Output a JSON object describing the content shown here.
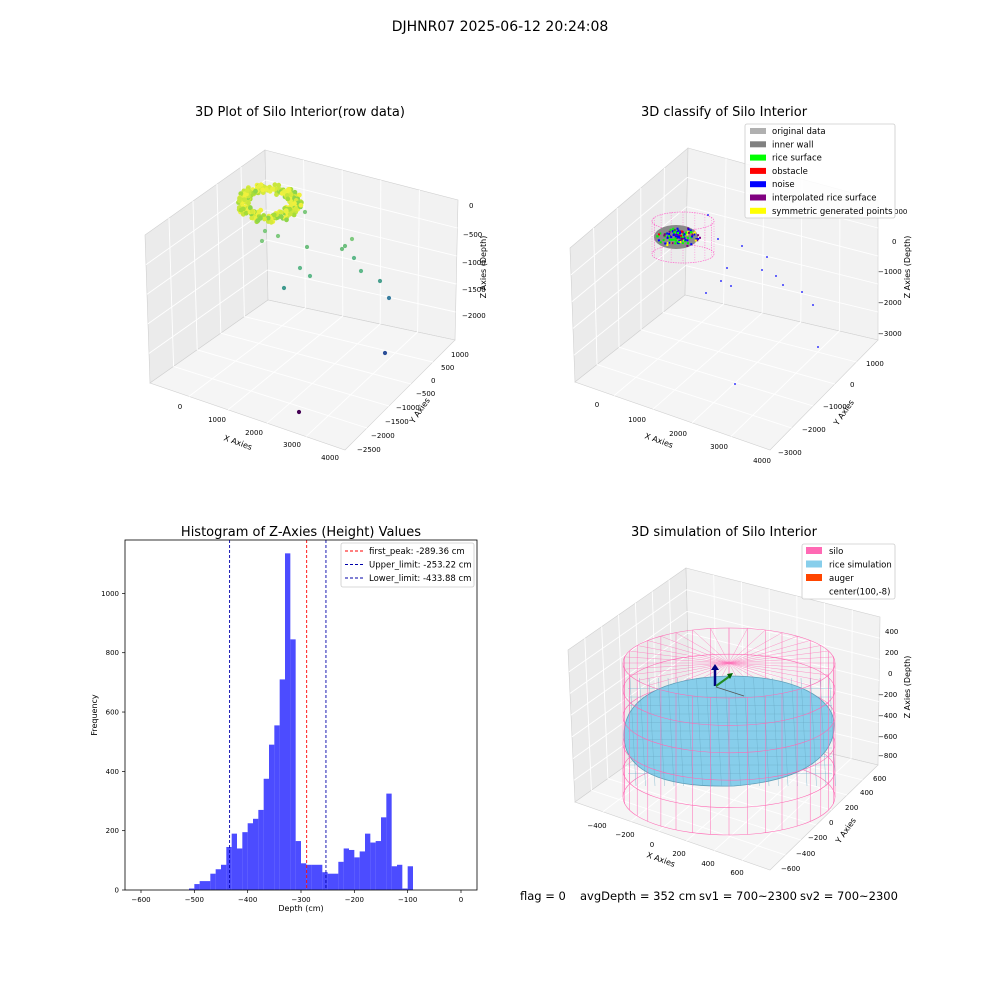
{
  "figure": {
    "suptitle": "DJHNR07 2025-06-12 20:24:08"
  },
  "panel_raw": {
    "title": "3D Plot of Silo Interior(row data)",
    "xlabel": "X Axies",
    "ylabel": "Y Axies",
    "zlabel": "Z Axies (Depth)",
    "xticks": [
      "0",
      "1000",
      "2000",
      "3000",
      "4000"
    ],
    "yticks": [
      "1000",
      "500",
      "0",
      "−500",
      "−1000",
      "−1500",
      "−2000",
      "−2500"
    ],
    "zticks": [
      "0",
      "−500",
      "−1000",
      "−1500",
      "−2000"
    ]
  },
  "panel_classify": {
    "title": "3D classify of Silo Interior",
    "xlabel": "X Axies",
    "ylabel": "Y Axies",
    "zlabel": "Z Axies (Depth)",
    "xticks": [
      "0",
      "1000",
      "2000",
      "3000",
      "4000"
    ],
    "yticks": [
      "1000",
      "0",
      "−1000",
      "−2000",
      "−3000"
    ],
    "zticks": [
      "1000",
      "0",
      "−1000",
      "−2000",
      "−3000"
    ],
    "zticks_partial": "000",
    "legend": [
      {
        "label": "original data",
        "color": "#b0b0b0"
      },
      {
        "label": "inner wall",
        "color": "#808080"
      },
      {
        "label": "rice surface",
        "color": "#00ff00"
      },
      {
        "label": "obstacle",
        "color": "#ff0000"
      },
      {
        "label": "noise",
        "color": "#0000ff"
      },
      {
        "label": "interpolated rice surface",
        "color": "#800080"
      },
      {
        "label": "symmetric generated points",
        "color": "#ffff00"
      }
    ]
  },
  "panel_sim": {
    "title": "3D simulation of Silo Interior",
    "xlabel": "X Axies",
    "ylabel": "Y Axies",
    "zlabel": "Z Axies (Depth)",
    "xticks": [
      "−400",
      "−200",
      "0",
      "200",
      "400",
      "600"
    ],
    "yticks": [
      "600",
      "400",
      "200",
      "0",
      "−200",
      "−400",
      "−600"
    ],
    "zticks": [
      "400",
      "200",
      "0",
      "−200",
      "−400",
      "−600",
      "−800"
    ],
    "legend": [
      {
        "label": "silo",
        "color": "#ff69b4"
      },
      {
        "label": "rice simulation",
        "color": "#87ceeb"
      },
      {
        "label": "auger",
        "color": "#ff4500"
      },
      {
        "label": "center(100,-8)",
        "color": ""
      }
    ]
  },
  "status": {
    "flag": "flag = 0",
    "avg_depth": "avgDepth = 352 cm",
    "sv1": "sv1 = 700~2300",
    "sv2": "sv2 = 700~2300"
  },
  "chart_data": [
    {
      "type": "scatter",
      "title": "3D Plot of Silo Interior(row data)",
      "xlabel": "X Axies",
      "ylabel": "Y Axies",
      "zlabel": "Z Axies (Depth)",
      "xlim": [
        -500,
        4000
      ],
      "ylim": [
        -2500,
        1000
      ],
      "zlim": [
        -2300,
        0
      ],
      "grid": true
    },
    {
      "type": "scatter",
      "title": "3D classify of Silo Interior",
      "xlabel": "X Axies",
      "ylabel": "Y Axies",
      "zlabel": "Z Axies (Depth)",
      "xlim": [
        -500,
        4000
      ],
      "ylim": [
        -3000,
        1000
      ],
      "zlim": [
        -3000,
        1000
      ],
      "legend_position": "top-right",
      "grid": true
    },
    {
      "type": "histogram",
      "title": "Histogram of Z-Axies (Height) Values",
      "xlabel": "Depth (cm)",
      "ylabel": "Frequency",
      "xlim": [
        -630,
        30
      ],
      "ylim": [
        0,
        1180
      ],
      "xticks": [
        "−600",
        "−500",
        "−400",
        "−300",
        "−200",
        "−100",
        "0"
      ],
      "yticks": [
        "0",
        "200",
        "400",
        "600",
        "800",
        "1000"
      ],
      "bin_start": -510,
      "bin_width": 10,
      "values": [
        5,
        20,
        30,
        30,
        55,
        70,
        85,
        145,
        190,
        140,
        195,
        225,
        240,
        270,
        375,
        490,
        555,
        710,
        1135,
        845,
        165,
        90,
        85,
        85,
        85,
        60,
        55,
        55,
        95,
        140,
        135,
        110,
        130,
        190,
        160,
        165,
        245,
        325,
        80,
        85,
        5,
        80
      ],
      "color": "#0000ff",
      "lines": [
        {
          "label": "first_peak: -289.36 cm",
          "x": -289.36,
          "color": "#ff0000"
        },
        {
          "label": "Upper_limit: -253.22 cm",
          "x": -253.22,
          "color": "#0000aa"
        },
        {
          "label": "Lower_limit: -433.88 cm",
          "x": -433.88,
          "color": "#0000aa"
        }
      ],
      "legend_position": "top-right",
      "grid": false
    },
    {
      "type": "surface",
      "title": "3D simulation of Silo Interior",
      "xlabel": "X Axies",
      "ylabel": "Y Axies",
      "zlabel": "Z Axies (Depth)",
      "xlim": [
        -500,
        700
      ],
      "ylim": [
        -700,
        700
      ],
      "zlim": [
        -900,
        500
      ],
      "legend_position": "top-right",
      "grid": true
    }
  ]
}
